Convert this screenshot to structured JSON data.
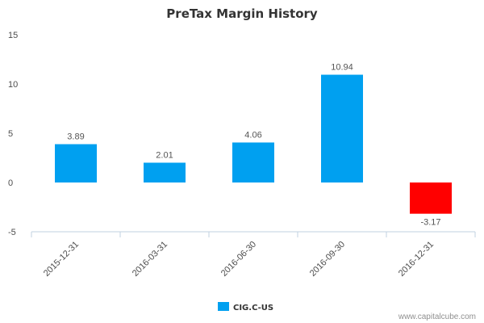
{
  "chart_data": {
    "type": "bar",
    "title": "PreTax Margin History",
    "categories": [
      "2015-12-31",
      "2016-03-31",
      "2016-06-30",
      "2016-09-30",
      "2016-12-31"
    ],
    "series": [
      {
        "name": "CIG.C-US",
        "values": [
          3.89,
          2.01,
          4.06,
          10.94,
          -3.17
        ],
        "labels": [
          "3.89",
          "2.01",
          "4.06",
          "10.94",
          "-3.17"
        ]
      }
    ],
    "ylim": [
      -5,
      15
    ],
    "yticks": [
      15,
      10,
      5,
      0,
      -5
    ],
    "ytick_labels": [
      "15",
      "10",
      "5",
      "0",
      "-5"
    ],
    "xlabel": "",
    "ylabel": "",
    "grid": false,
    "legend": "bottom-center",
    "colors": {
      "positive": "#00a0f0",
      "negative": "#ff0000",
      "axis": "#c0d0e0"
    }
  },
  "credit": "www.capitalcube.com"
}
